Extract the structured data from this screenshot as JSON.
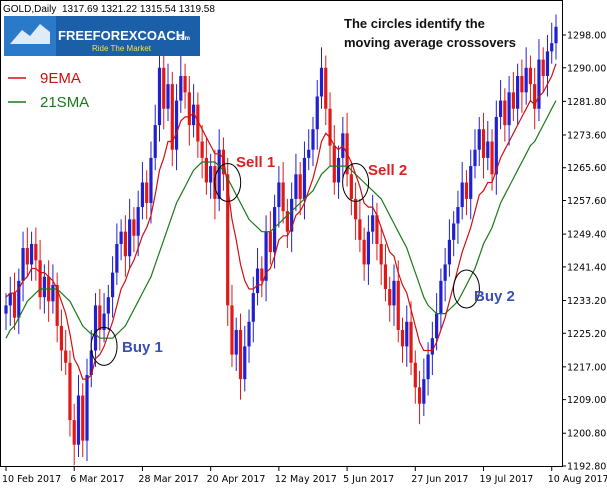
{
  "header": {
    "symbol": "GOLD,Daily",
    "ohlc": "1317.69 1321.22 1315.54 1319.58"
  },
  "logo": {
    "name": "FREEFOREXCOACH",
    "suffix": ".com",
    "tagline": "Ride The Market"
  },
  "annotation": {
    "line1": "The circles identify the",
    "line2": "moving average crossovers"
  },
  "signals": [
    {
      "label": "Buy 1",
      "type": "buy",
      "x_index": 23,
      "price": 1222
    },
    {
      "label": "Sell 1",
      "type": "sell",
      "x_index": 52,
      "price": 1262
    },
    {
      "label": "Sell 2",
      "type": "sell",
      "x_index": 82,
      "price": 1262
    },
    {
      "label": "Buy 2",
      "type": "buy",
      "x_index": 108,
      "price": 1236
    }
  ],
  "colors": {
    "bull": "#2020d0",
    "bear": "#e01818",
    "ema": "#d01010",
    "sma": "#1a7a1a",
    "circle": "#000000"
  },
  "chart_data": {
    "type": "candlestick",
    "legend": [
      {
        "name": "9EMA",
        "color": "#d01010"
      },
      {
        "name": "21SMA",
        "color": "#1a7a1a"
      }
    ],
    "x_ticks": [
      {
        "label": "10 Feb 2017",
        "index": 0
      },
      {
        "label": "6 Mar 2017",
        "index": 16
      },
      {
        "label": "28 Mar 2017",
        "index": 32
      },
      {
        "label": "20 Apr 2017",
        "index": 48
      },
      {
        "label": "12 May 2017",
        "index": 64
      },
      {
        "label": "5 Jun 2017",
        "index": 80
      },
      {
        "label": "27 Jun 2017",
        "index": 96
      },
      {
        "label": "19 Jul 2017",
        "index": 112
      },
      {
        "label": "10 Aug 2017",
        "index": 128
      }
    ],
    "y_ticks": [
      1298.0,
      1290.0,
      1281.8,
      1273.6,
      1265.6,
      1257.6,
      1249.4,
      1241.4,
      1233.2,
      1225.2,
      1217.0,
      1209.0,
      1200.8,
      1192.8
    ],
    "y_range": [
      1192.8,
      1298.0
    ],
    "close": [
      1232,
      1235,
      1229,
      1238,
      1246,
      1242,
      1247,
      1243,
      1234,
      1239,
      1233,
      1237,
      1227,
      1221,
      1218,
      1204,
      1198,
      1210,
      1199,
      1215,
      1221,
      1232,
      1226,
      1230,
      1234,
      1240,
      1247,
      1250,
      1244,
      1253,
      1249,
      1256,
      1262,
      1257,
      1268,
      1276,
      1290,
      1280,
      1286,
      1270,
      1282,
      1288,
      1284,
      1276,
      1281,
      1272,
      1268,
      1262,
      1266,
      1258,
      1270,
      1264,
      1232,
      1220,
      1226,
      1214,
      1222,
      1228,
      1235,
      1241,
      1238,
      1250,
      1245,
      1256,
      1262,
      1255,
      1250,
      1258,
      1264,
      1258,
      1268,
      1270,
      1275,
      1283,
      1290,
      1280,
      1271,
      1262,
      1268,
      1274,
      1264,
      1258,
      1253,
      1248,
      1242,
      1250,
      1254,
      1247,
      1242,
      1236,
      1232,
      1238,
      1226,
      1222,
      1228,
      1218,
      1212,
      1208,
      1214,
      1220,
      1224,
      1230,
      1238,
      1242,
      1248,
      1252,
      1256,
      1262,
      1258,
      1266,
      1270,
      1275,
      1268,
      1272,
      1264,
      1278,
      1282,
      1276,
      1284,
      1280,
      1288,
      1284,
      1290,
      1286,
      1280,
      1292,
      1288,
      1294,
      1296,
      1300
    ],
    "ema9": [
      1234,
      1235,
      1235,
      1236,
      1238,
      1239,
      1241,
      1241,
      1240,
      1240,
      1239,
      1238,
      1236,
      1233,
      1230,
      1225,
      1219,
      1217,
      1214,
      1214,
      1215,
      1219,
      1220,
      1222,
      1225,
      1228,
      1232,
      1236,
      1238,
      1241,
      1243,
      1246,
      1249,
      1251,
      1254,
      1259,
      1265,
      1268,
      1272,
      1272,
      1274,
      1277,
      1278,
      1278,
      1279,
      1277,
      1275,
      1273,
      1271,
      1269,
      1269,
      1268,
      1261,
      1253,
      1248,
      1242,
      1238,
      1236,
      1236,
      1237,
      1237,
      1240,
      1241,
      1244,
      1248,
      1249,
      1249,
      1251,
      1254,
      1255,
      1257,
      1260,
      1263,
      1267,
      1272,
      1274,
      1273,
      1271,
      1270,
      1271,
      1269,
      1267,
      1264,
      1261,
      1257,
      1256,
      1256,
      1254,
      1251,
      1248,
      1245,
      1244,
      1240,
      1237,
      1235,
      1231,
      1227,
      1223,
      1221,
      1221,
      1221,
      1223,
      1226,
      1229,
      1233,
      1237,
      1241,
      1245,
      1248,
      1251,
      1255,
      1259,
      1260,
      1262,
      1262,
      1265,
      1268,
      1270,
      1272,
      1274,
      1276,
      1278,
      1280,
      1282,
      1281,
      1283,
      1284,
      1286,
      1288,
      1291
    ],
    "sma21": [
      1224,
      1226,
      1227,
      1229,
      1231,
      1233,
      1234,
      1235,
      1236,
      1236,
      1236,
      1236,
      1236,
      1235,
      1234,
      1233,
      1231,
      1229,
      1227,
      1226,
      1225,
      1225,
      1224,
      1224,
      1224,
      1224,
      1225,
      1226,
      1227,
      1229,
      1231,
      1233,
      1235,
      1237,
      1239,
      1242,
      1245,
      1248,
      1251,
      1254,
      1257,
      1259,
      1261,
      1263,
      1265,
      1266,
      1267,
      1267,
      1267,
      1267,
      1266,
      1265,
      1263,
      1261,
      1259,
      1257,
      1255,
      1253,
      1252,
      1251,
      1250,
      1250,
      1250,
      1251,
      1252,
      1253,
      1254,
      1255,
      1256,
      1257,
      1258,
      1259,
      1260,
      1262,
      1264,
      1265,
      1266,
      1266,
      1266,
      1266,
      1266,
      1265,
      1264,
      1263,
      1262,
      1261,
      1260,
      1259,
      1258,
      1256,
      1254,
      1252,
      1250,
      1248,
      1246,
      1243,
      1240,
      1237,
      1234,
      1232,
      1231,
      1230,
      1230,
      1230,
      1231,
      1232,
      1233,
      1235,
      1237,
      1239,
      1241,
      1244,
      1247,
      1249,
      1251,
      1254,
      1257,
      1259,
      1261,
      1263,
      1265,
      1267,
      1269,
      1271,
      1272,
      1274,
      1276,
      1278,
      1280,
      1282
    ]
  }
}
